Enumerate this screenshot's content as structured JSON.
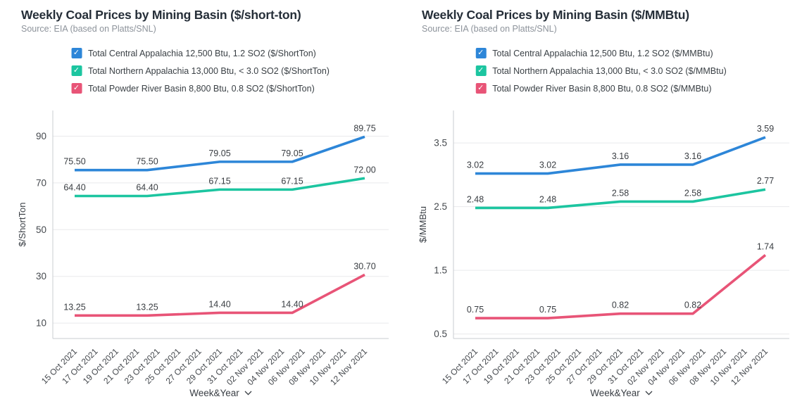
{
  "colors": {
    "blue": "#2d86d8",
    "teal": "#1cc5a0",
    "pink": "#e85477",
    "grid": "#e9eaec",
    "axis": "#c9ccd1",
    "title": "#252e38",
    "subtitle": "#8d939b",
    "text": "#3b4046"
  },
  "chart_data": [
    {
      "type": "line",
      "title": "Weekly Coal Prices by Mining Basin ($/short-ton)",
      "subtitle": "Source: EIA (based on Platts/SNL)",
      "xlabel": "Week&Year",
      "ylabel": "$/ShortTon",
      "legend_position": "top",
      "grid": true,
      "x": [
        "15 Oct 2021",
        "22 Oct 2021",
        "29 Oct 2021",
        "05 Nov 2021",
        "12 Nov 2021"
      ],
      "x_day_offsets": [
        0,
        7,
        14,
        21,
        28
      ],
      "x_max_day": 28,
      "x_tick_labels": [
        "15 Oct 2021",
        "17 Oct 2021",
        "19 Oct 2021",
        "21 Oct 2021",
        "23 Oct 2021",
        "25 Oct 2021",
        "27 Oct 2021",
        "29 Oct 2021",
        "31 Oct 2021",
        "02 Nov 2021",
        "04 Nov 2021",
        "06 Nov 2021",
        "08 Nov 2021",
        "10 Nov 2021",
        "12 Nov 2021"
      ],
      "y_ticks": [
        10,
        30,
        50,
        70,
        90
      ],
      "y_tick_labels": [
        "10",
        "30",
        "50",
        "70",
        "90"
      ],
      "ylim": [
        3.4,
        101
      ],
      "legend": [
        {
          "label": "Total Central Appalachia 12,500 Btu, 1.2 SO2 ($/ShortTon)",
          "color_key": "blue",
          "checked": true
        },
        {
          "label": "Total Northern Appalachia 13,000 Btu, < 3.0 SO2 ($/ShortTon)",
          "color_key": "teal",
          "checked": true
        },
        {
          "label": "Total Powder River Basin 8,800 Btu, 0.8 SO2 ($/ShortTon)",
          "color_key": "pink",
          "checked": true
        }
      ],
      "series": [
        {
          "name": "Total Central Appalachia 12,500 Btu, 1.2 SO2 ($/ShortTon)",
          "color_key": "blue",
          "values": [
            75.5,
            75.5,
            79.05,
            79.05,
            89.75
          ],
          "labels": [
            "75.50",
            "75.50",
            "79.05",
            "79.05",
            "89.75"
          ]
        },
        {
          "name": "Total Northern Appalachia 13,000 Btu, < 3.0 SO2 ($/ShortTon)",
          "color_key": "teal",
          "values": [
            64.4,
            64.4,
            67.15,
            67.15,
            72.0
          ],
          "labels": [
            "64.40",
            "64.40",
            "67.15",
            "67.15",
            "72.00"
          ]
        },
        {
          "name": "Total Powder River Basin 8,800 Btu, 0.8 SO2 ($/ShortTon)",
          "color_key": "pink",
          "values": [
            13.25,
            13.25,
            14.4,
            14.4,
            30.7
          ],
          "labels": [
            "13.25",
            "13.25",
            "14.40",
            "14.40",
            "30.70"
          ]
        }
      ]
    },
    {
      "type": "line",
      "title": "Weekly Coal Prices by Mining Basin ($/MMBtu)",
      "subtitle": "Source: EIA (based on Platts/SNL)",
      "xlabel": "Week&Year",
      "ylabel": "$/MMBtu",
      "legend_position": "top",
      "grid": true,
      "x": [
        "15 Oct 2021",
        "22 Oct 2021",
        "29 Oct 2021",
        "05 Nov 2021",
        "12 Nov 2021"
      ],
      "x_day_offsets": [
        0,
        7,
        14,
        21,
        28
      ],
      "x_max_day": 28,
      "x_tick_labels": [
        "15 Oct 2021",
        "17 Oct 2021",
        "19 Oct 2021",
        "21 Oct 2021",
        "23 Oct 2021",
        "25 Oct 2021",
        "27 Oct 2021",
        "29 Oct 2021",
        "31 Oct 2021",
        "02 Nov 2021",
        "04 Nov 2021",
        "06 Nov 2021",
        "08 Nov 2021",
        "10 Nov 2021",
        "12 Nov 2021"
      ],
      "y_ticks": [
        0.5,
        1.5,
        2.5,
        3.5
      ],
      "y_tick_labels": [
        "0.5",
        "1.5",
        "2.5",
        "3.5"
      ],
      "ylim": [
        0.43,
        4.01
      ],
      "legend": [
        {
          "label": "Total Central Appalachia 12,500 Btu, 1.2 SO2 ($/MMBtu)",
          "color_key": "blue",
          "checked": true
        },
        {
          "label": "Total Northern Appalachia 13,000 Btu, < 3.0 SO2 ($/MMBtu)",
          "color_key": "teal",
          "checked": true
        },
        {
          "label": "Total Powder River Basin 8,800 Btu, 0.8 SO2 ($/MMBtu)",
          "color_key": "pink",
          "checked": true
        }
      ],
      "series": [
        {
          "name": "Total Central Appalachia 12,500 Btu, 1.2 SO2 ($/MMBtu)",
          "color_key": "blue",
          "values": [
            3.02,
            3.02,
            3.16,
            3.16,
            3.59
          ],
          "labels": [
            "3.02",
            "3.02",
            "3.16",
            "3.16",
            "3.59"
          ]
        },
        {
          "name": "Total Northern Appalachia 13,000 Btu, < 3.0 SO2 ($/MMBtu)",
          "color_key": "teal",
          "values": [
            2.48,
            2.48,
            2.58,
            2.58,
            2.77
          ],
          "labels": [
            "2.48",
            "2.48",
            "2.58",
            "2.58",
            "2.77"
          ]
        },
        {
          "name": "Total Powder River Basin 8,800 Btu, 0.8 SO2 ($/MMBtu)",
          "color_key": "pink",
          "values": [
            0.75,
            0.75,
            0.82,
            0.82,
            1.74
          ],
          "labels": [
            "0.75",
            "0.75",
            "0.82",
            "0.82",
            "1.74"
          ]
        }
      ]
    }
  ]
}
